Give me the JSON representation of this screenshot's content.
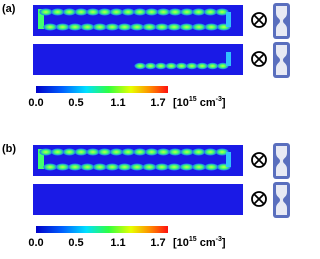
{
  "panels": [
    {
      "label": "(a)",
      "colorbar": {
        "ticks": [
          "0.0",
          "0.5",
          "1.1",
          "1.7"
        ],
        "unit_open": "[10",
        "unit_exp": "15",
        "unit_mid": " cm",
        "unit_exp2": "-3",
        "unit_close": "]"
      }
    },
    {
      "label": "(b)",
      "colorbar": {
        "ticks": [
          "0.0",
          "0.5",
          "1.1",
          "1.7"
        ],
        "unit_open": "[10",
        "unit_exp": "15",
        "unit_mid": " cm",
        "unit_exp2": "-3",
        "unit_close": "]"
      }
    }
  ]
}
